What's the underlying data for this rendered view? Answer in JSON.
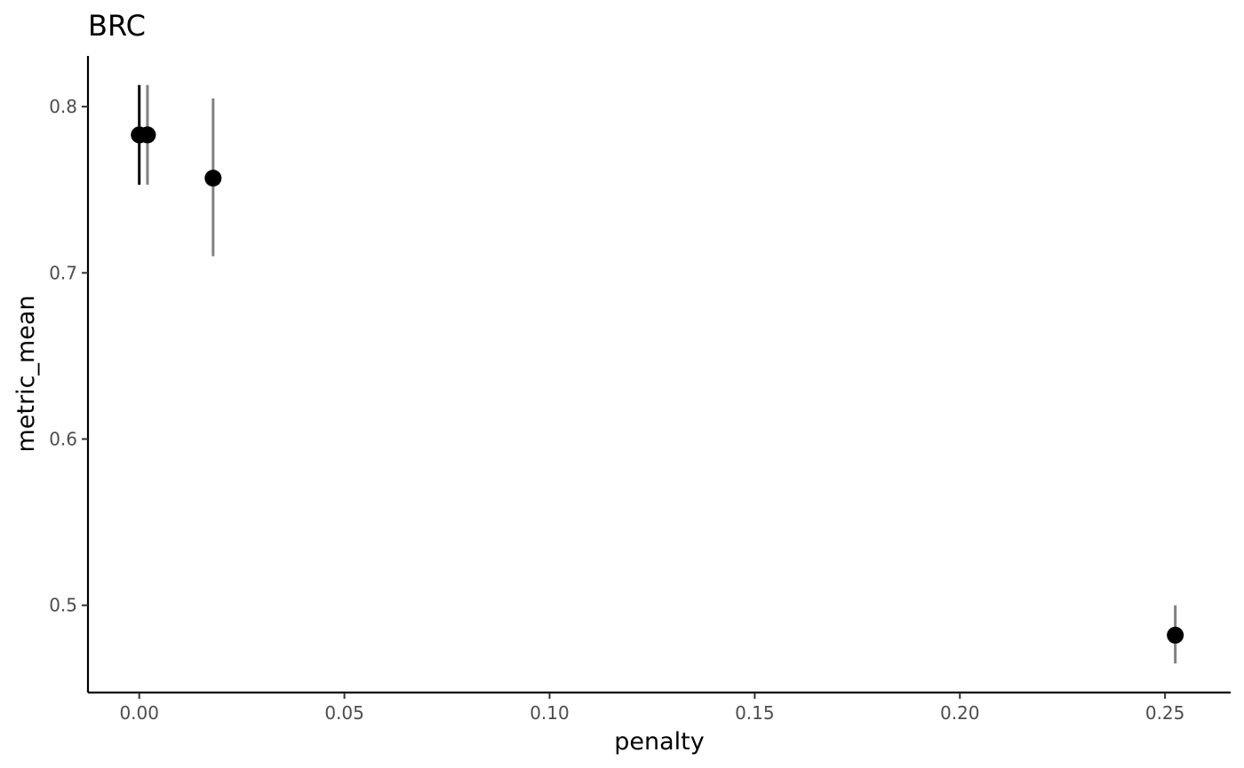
{
  "chart_data": {
    "type": "scatter",
    "title": "BRC",
    "xlabel": "penalty",
    "ylabel": "metric_mean",
    "xlim": [
      -0.0125,
      0.266
    ],
    "ylim": [
      0.4475,
      0.8305
    ],
    "x_ticks": [
      "0.00",
      "0.05",
      "0.10",
      "0.15",
      "0.20",
      "0.25"
    ],
    "y_ticks": [
      "0.5",
      "0.6",
      "0.7",
      "0.8"
    ],
    "grid": false,
    "points": [
      {
        "x": 0.0,
        "y": 0.783,
        "ymin": 0.753,
        "ymax": 0.813,
        "errorbar_color": "#000000"
      },
      {
        "x": 0.002,
        "y": 0.783,
        "ymin": 0.753,
        "ymax": 0.813,
        "errorbar_color": "#808080"
      },
      {
        "x": 0.018,
        "y": 0.757,
        "ymin": 0.71,
        "ymax": 0.805,
        "errorbar_color": "#808080"
      },
      {
        "x": 0.2525,
        "y": 0.482,
        "ymin": 0.465,
        "ymax": 0.5,
        "errorbar_color": "#808080"
      }
    ],
    "colors": {
      "point": "#000000",
      "axis": "#000000",
      "tick_text": "#4d4d4d"
    }
  }
}
